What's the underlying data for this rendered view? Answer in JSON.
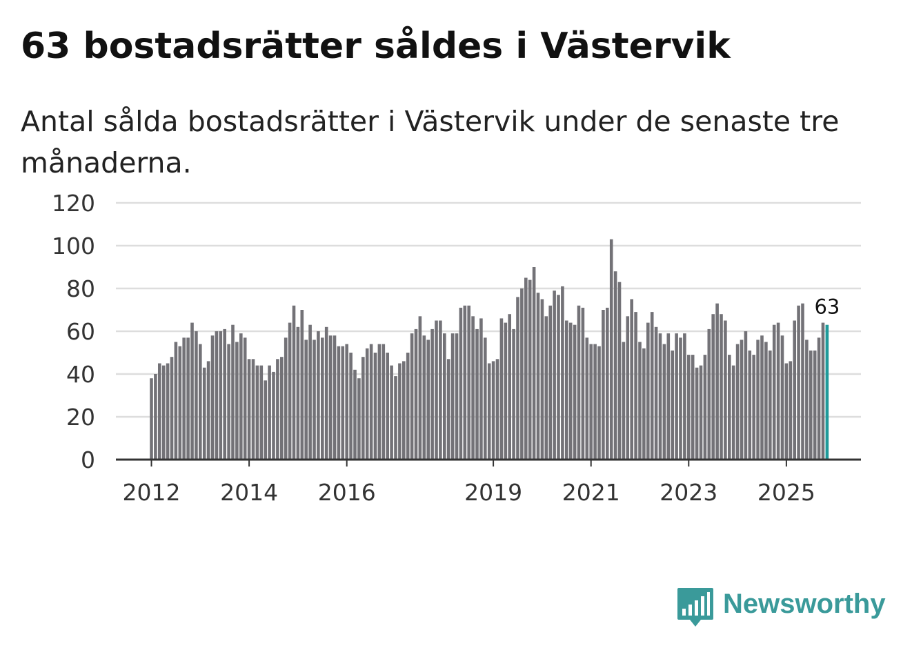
{
  "title": "63 bostadsrätter såldes i Västervik",
  "subtitle": "Antal sålda bostadsrätter i Västervik under de senaste tre månaderna.",
  "brand": {
    "name": "Newsworthy",
    "icon": "newsworthy-bars-icon",
    "color": "#3a9a9a"
  },
  "colors": {
    "bar": "#737277",
    "highlight": "#1f9a9a",
    "grid": "#dddddd",
    "axis": "#333333"
  },
  "chart_data": {
    "type": "bar",
    "title": "Antal sålda bostadsrätter",
    "xlabel": "",
    "ylabel": "",
    "ylim": [
      0,
      120
    ],
    "y_ticks": [
      "0",
      "20",
      "40",
      "60",
      "80",
      "100",
      "120"
    ],
    "x_start": "2012-01",
    "x_ticks": [
      {
        "label": "2012",
        "index": 0
      },
      {
        "label": "2014",
        "index": 24
      },
      {
        "label": "2016",
        "index": 48
      },
      {
        "label": "2019",
        "index": 84
      },
      {
        "label": "2021",
        "index": 108
      },
      {
        "label": "2023",
        "index": 132
      },
      {
        "label": "2025",
        "index": 156
      }
    ],
    "values": [
      38,
      40,
      45,
      44,
      45,
      48,
      55,
      53,
      57,
      57,
      64,
      60,
      54,
      43,
      46,
      58,
      60,
      60,
      61,
      54,
      63,
      55,
      59,
      57,
      47,
      47,
      44,
      44,
      37,
      44,
      41,
      47,
      48,
      57,
      64,
      72,
      62,
      70,
      56,
      63,
      56,
      60,
      57,
      62,
      58,
      58,
      53,
      53,
      54,
      50,
      42,
      38,
      48,
      52,
      54,
      50,
      54,
      54,
      50,
      44,
      39,
      45,
      46,
      50,
      59,
      61,
      67,
      58,
      56,
      61,
      65,
      65,
      59,
      47,
      59,
      59,
      71,
      72,
      72,
      67,
      61,
      66,
      57,
      45,
      46,
      47,
      66,
      64,
      68,
      61,
      76,
      80,
      85,
      84,
      90,
      78,
      75,
      67,
      72,
      79,
      77,
      81,
      65,
      64,
      63,
      72,
      71,
      57,
      54,
      54,
      53,
      70,
      71,
      103,
      88,
      83,
      55,
      67,
      75,
      69,
      55,
      52,
      64,
      69,
      62,
      59,
      54,
      59,
      51,
      59,
      57,
      59,
      49,
      49,
      43,
      44,
      49,
      61,
      68,
      73,
      68,
      65,
      49,
      44,
      54,
      56,
      60,
      51,
      49,
      56,
      58,
      55,
      51,
      63,
      64,
      58,
      45,
      46,
      65,
      72,
      73,
      56,
      51,
      51,
      57,
      64,
      63
    ],
    "highlight_index": 166,
    "highlight_label": "63"
  }
}
